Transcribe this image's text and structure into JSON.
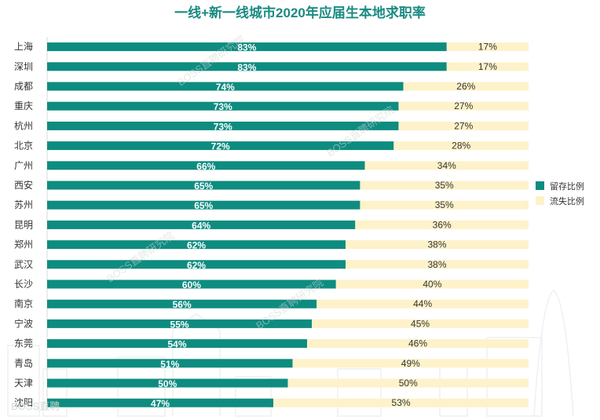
{
  "chart_data": {
    "type": "bar",
    "orientation": "horizontal",
    "stacked": true,
    "title": "一线+新一线城市2020年应届生本地求职率",
    "categories": [
      "上海",
      "深圳",
      "成都",
      "重庆",
      "杭州",
      "北京",
      "广州",
      "西安",
      "苏州",
      "昆明",
      "郑州",
      "武汉",
      "长沙",
      "南京",
      "宁波",
      "东莞",
      "青岛",
      "天津",
      "沈阳"
    ],
    "series": [
      {
        "name": "留存比例",
        "color": "#0e8c80",
        "values": [
          83,
          83,
          74,
          73,
          73,
          72,
          66,
          65,
          65,
          64,
          62,
          62,
          60,
          56,
          55,
          54,
          51,
          50,
          47
        ]
      },
      {
        "name": "流失比例",
        "color": "#fdf2c9",
        "values": [
          17,
          17,
          26,
          27,
          27,
          28,
          34,
          35,
          35,
          36,
          38,
          38,
          40,
          44,
          45,
          46,
          49,
          50,
          53
        ]
      }
    ],
    "xlim": [
      0,
      100
    ],
    "value_suffix": "%",
    "legend_position": "right",
    "grid": false
  },
  "watermarks": {
    "diagonal": "BOSS直聘研究院",
    "footer": "BOSS直聘"
  }
}
